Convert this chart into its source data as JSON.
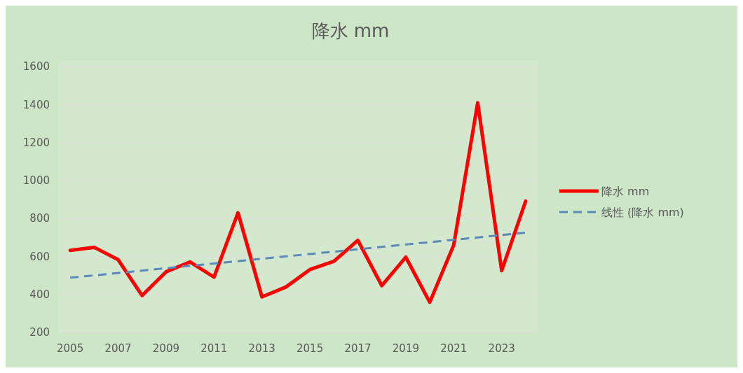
{
  "chart_data": {
    "type": "line",
    "title": "降水 mm",
    "x": [
      2005,
      2006,
      2007,
      2008,
      2009,
      2010,
      2011,
      2012,
      2013,
      2014,
      2015,
      2016,
      2017,
      2018,
      2019,
      2020,
      2021,
      2022,
      2023,
      2024
    ],
    "xlim": [
      2004.5,
      2024.5
    ],
    "xticks": [
      2005,
      2007,
      2009,
      2011,
      2013,
      2015,
      2017,
      2019,
      2021,
      2023
    ],
    "ylim": [
      200,
      1600
    ],
    "yticks": [
      200,
      400,
      600,
      800,
      1000,
      1200,
      1400,
      1600
    ],
    "grid": "y",
    "legend": "right",
    "marker": "none",
    "series": [
      {
        "name": "降水 mm",
        "color": "#ff0000",
        "line_style": "solid",
        "values": [
          632,
          648,
          583,
          394,
          519,
          571,
          491,
          830,
          387,
          439,
          531,
          574,
          685,
          446,
          596,
          359,
          660,
          1409,
          525,
          891
        ]
      },
      {
        "name": "线性 (降水 mm)",
        "type": "line",
        "color": "#5b8ab8",
        "line_style": "dashed",
        "x": [
          2005,
          2024
        ],
        "values": [
          488,
          725
        ]
      }
    ]
  }
}
